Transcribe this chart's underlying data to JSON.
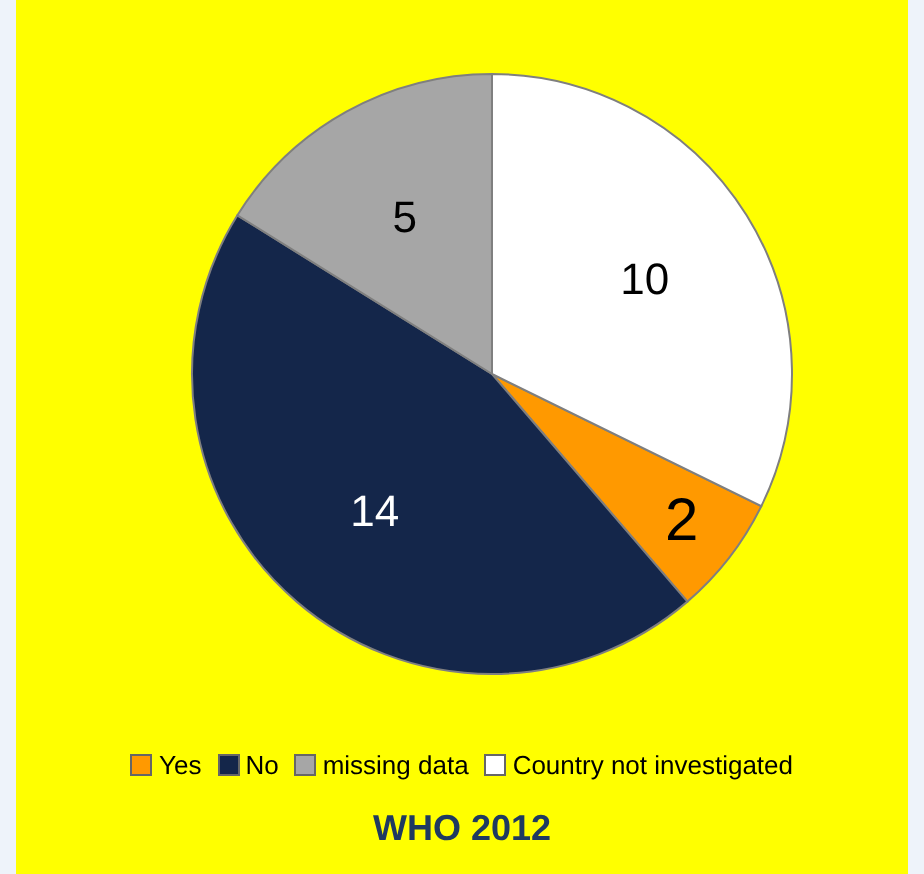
{
  "chart_data": {
    "type": "pie",
    "title": "WHO 2012",
    "categories": [
      "Yes",
      "No",
      "missing data",
      "Country not investigated"
    ],
    "values": [
      2,
      14,
      5,
      10
    ],
    "colors": [
      "#ff9900",
      "#14264a",
      "#a6a6a6",
      "#ffffff"
    ],
    "data_labels": true,
    "legend": "bottom"
  }
}
